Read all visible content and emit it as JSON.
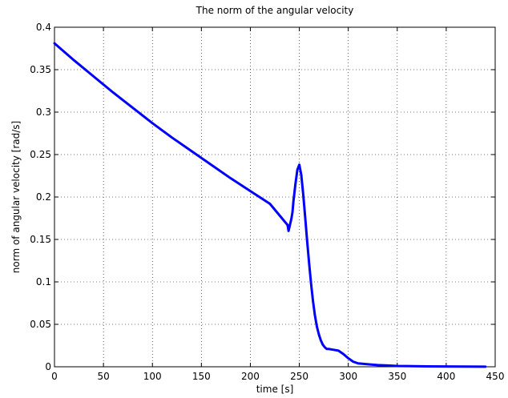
{
  "chart_data": {
    "type": "line",
    "title": "The norm of the angular velocity",
    "xlabel": "time [s]",
    "ylabel": "norm of angular velocity [rad/s]",
    "xlim": [
      0,
      450
    ],
    "ylim": [
      0,
      0.4
    ],
    "xticks": [
      0,
      50,
      100,
      150,
      200,
      250,
      300,
      350,
      400,
      450
    ],
    "yticks": [
      0,
      0.05,
      0.1,
      0.15,
      0.2,
      0.25,
      0.3,
      0.35,
      0.4
    ],
    "xtick_labels": [
      "0",
      "50",
      "100",
      "150",
      "200",
      "250",
      "300",
      "350",
      "400",
      "450"
    ],
    "ytick_labels": [
      "0",
      "0.05",
      "0.1",
      "0.15",
      "0.2",
      "0.25",
      "0.3",
      "0.35",
      "0.4"
    ],
    "grid": true,
    "line_color": "#0000ff",
    "series": [
      {
        "x": [
          0,
          20,
          40,
          60,
          80,
          100,
          120,
          140,
          160,
          180,
          200,
          220,
          238,
          239,
          240,
          241,
          242,
          243,
          244,
          246,
          248,
          250,
          252,
          254,
          256,
          258,
          260,
          262,
          264,
          266,
          268,
          270,
          272,
          274,
          276,
          278,
          280,
          285,
          290,
          295,
          300,
          305,
          310,
          320,
          330,
          340,
          350,
          360,
          380,
          400,
          420,
          440
        ],
        "y": [
          0.381,
          0.361,
          0.342,
          0.323,
          0.305,
          0.287,
          0.27,
          0.254,
          0.238,
          0.222,
          0.207,
          0.192,
          0.167,
          0.16,
          0.165,
          0.17,
          0.175,
          0.182,
          0.195,
          0.215,
          0.232,
          0.238,
          0.226,
          0.203,
          0.176,
          0.148,
          0.122,
          0.098,
          0.077,
          0.06,
          0.047,
          0.038,
          0.031,
          0.026,
          0.023,
          0.021,
          0.021,
          0.02,
          0.019,
          0.015,
          0.01,
          0.006,
          0.004,
          0.003,
          0.002,
          0.0015,
          0.001,
          0.0008,
          0.0005,
          0.0003,
          0.0002,
          0.0001
        ]
      }
    ]
  }
}
